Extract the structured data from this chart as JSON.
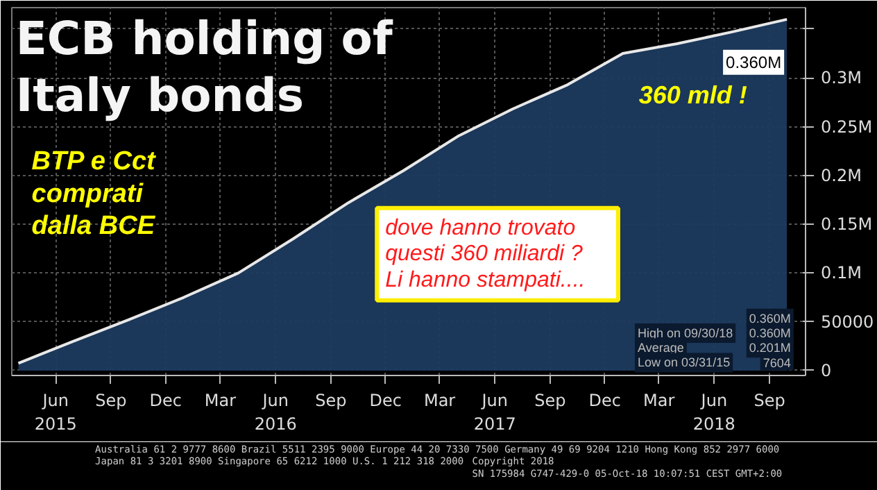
{
  "chart_data": {
    "type": "area",
    "title": "ECB holding of\nItaly bonds",
    "x": [
      "2015-03-31",
      "2015-06-30",
      "2015-09-30",
      "2015-12-31",
      "2016-03-31",
      "2016-06-30",
      "2016-09-30",
      "2016-12-31",
      "2017-03-31",
      "2017-06-30",
      "2017-09-30",
      "2017-12-31",
      "2018-03-31",
      "2018-06-30",
      "2018-09-30"
    ],
    "series": [
      {
        "color": "#1c3a5e",
        "values": [
          7604,
          30000,
          52000,
          75000,
          100000,
          135000,
          172000,
          205000,
          240000,
          268000,
          293000,
          325000,
          335000,
          347000,
          360000
        ]
      }
    ],
    "xlim": [
      "2015-03-20",
      "2018-10-31"
    ],
    "xticks": [
      {
        "value": "2015-06-01",
        "label": "Jun\n2015"
      },
      {
        "value": "2015-09-01",
        "label": "Sep"
      },
      {
        "value": "2015-12-01",
        "label": "Dec"
      },
      {
        "value": "2016-03-01",
        "label": "Mar"
      },
      {
        "value": "2016-06-01",
        "label": "Jun\n2016"
      },
      {
        "value": "2016-09-01",
        "label": "Sep"
      },
      {
        "value": "2016-12-01",
        "label": "Dec"
      },
      {
        "value": "2017-03-01",
        "label": "Mar"
      },
      {
        "value": "2017-06-01",
        "label": "Jun\n2017"
      },
      {
        "value": "2017-09-01",
        "label": "Sep"
      },
      {
        "value": "2017-12-01",
        "label": "Dec"
      },
      {
        "value": "2018-03-01",
        "label": "Mar"
      },
      {
        "value": "2018-06-01",
        "label": "Jun\n2018"
      },
      {
        "value": "2018-09-01",
        "label": "Sep"
      }
    ],
    "ylim": [
      -5000,
      372000
    ],
    "yticks": [
      0,
      50000,
      {
        "value": 100000,
        "label": "0.1M"
      },
      {
        "value": 150000,
        "label": "0.15M"
      },
      {
        "value": 200000,
        "label": "0.2M"
      },
      {
        "value": 250000,
        "label": "0.25M"
      },
      {
        "value": 300000,
        "label": "0.3M"
      },
      {
        "value": 350000,
        "label": null
      }
    ],
    "grid": true,
    "annotations": [
      "BTP e Cct\ncomprati\ndalla BCE",
      "360 mld !",
      "dove hanno trovato\nquesti 360 miliardi ?\n    Li hanno stampati....",
      {
        "text": "0.360M",
        "x": "2018-09-30",
        "y": 360000
      },
      "High on 09/30/18",
      "0.360M",
      "Average",
      "0.201M",
      "Low on 03/31/15",
      "7604",
      "0.360M",
      "Australia 61 2 9777 8600 Brazil 5511 2395 9000 Europe 44 20 7330 7500 Germany 49 69 9204 1210 Hong Kong 852 2977 6000",
      "Japan 81 3 3201 8900      Singapore 65 6212 1000      U.S. 1 212 318 2000",
      "Copyright 2018",
      "SN 175984 G747-429-0 05-Oct-18 10:07:51 CEST GMT+2:00"
    ]
  }
}
